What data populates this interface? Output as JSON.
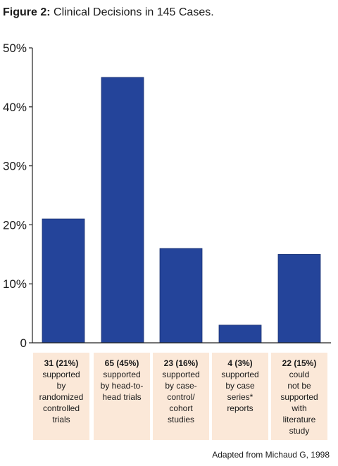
{
  "figure": {
    "label": "Figure 2:",
    "title": "Clinical Decisions in 145 Cases.",
    "source": "Adapted from Michaud G, 1998"
  },
  "colors": {
    "bar": "#24449a",
    "cell_bg": "#fbe8d8",
    "axis": "#222222"
  },
  "chart_data": {
    "type": "bar",
    "title": "Clinical Decisions in 145 Cases.",
    "ylim": [
      0,
      50
    ],
    "yticks": [
      "0",
      "10%",
      "20%",
      "30%",
      "40%",
      "50%"
    ],
    "ytick_values": [
      0,
      10,
      20,
      30,
      40,
      50
    ],
    "grid": false,
    "values": [
      21,
      45,
      16,
      3,
      15
    ],
    "categories": [
      {
        "head": "31 (21%)",
        "desc": "supported\nby\nrandomized\ncontrolled\ntrials"
      },
      {
        "head": "65 (45%)",
        "desc": "supported\nby head-to-\nhead trials"
      },
      {
        "head": "23 (16%)",
        "desc": "supported\nby case-\ncontrol/\ncohort\nstudies"
      },
      {
        "head": "4 (3%)",
        "desc": "supported\nby case\nseries*\nreports"
      },
      {
        "head": "22 (15%)",
        "desc": "could\nnot be\nsupported\nwith\nliterature\nstudy"
      }
    ]
  }
}
